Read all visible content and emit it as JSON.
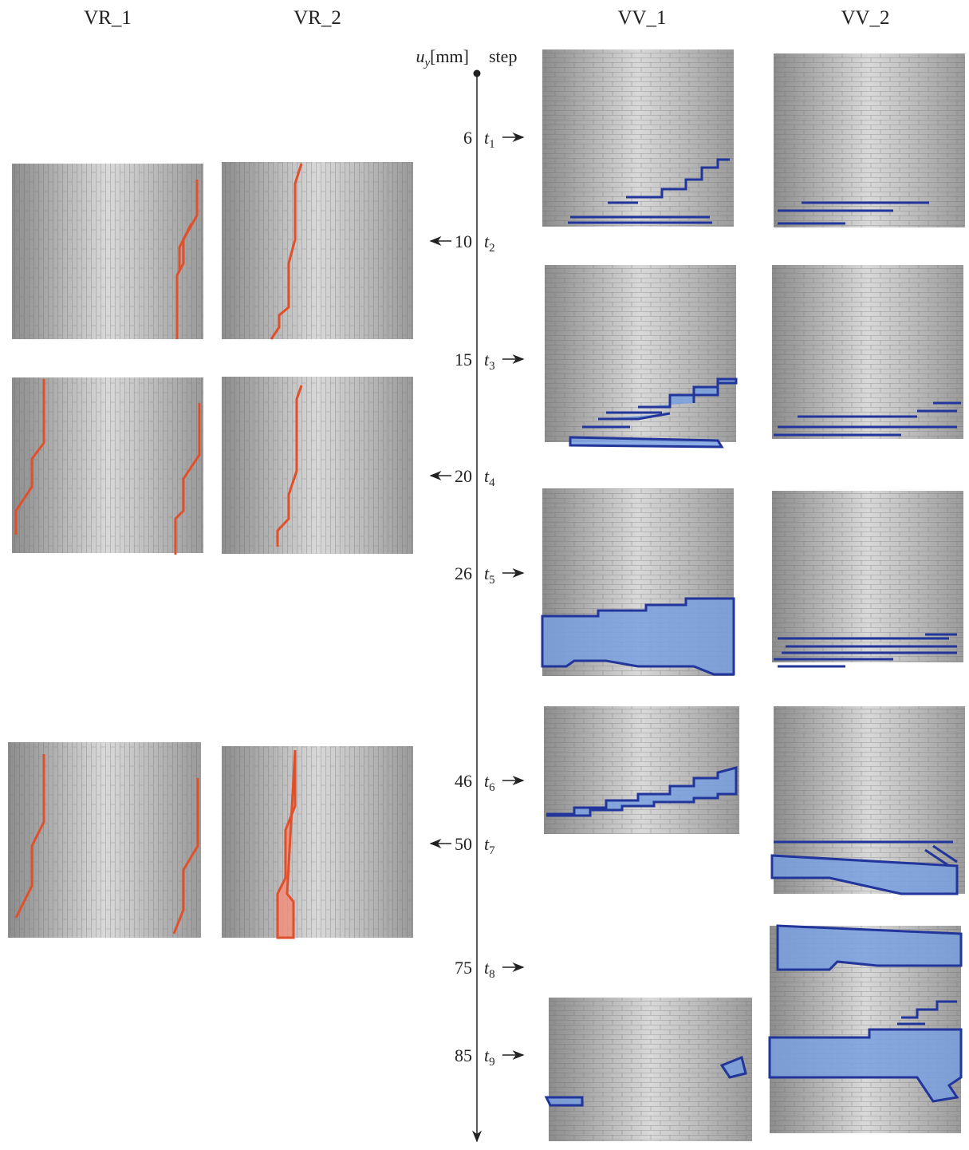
{
  "columns": [
    "VR_1",
    "VR_2",
    "VV_1",
    "VV_2"
  ],
  "axis": {
    "displacement_label": {
      "symbol": "u",
      "subscript": "y",
      "unit": "[mm]"
    },
    "step_label": "step"
  },
  "steps": [
    {
      "displacement": 6,
      "step": {
        "symbol": "t",
        "subscript": "1"
      }
    },
    {
      "displacement": 10,
      "step": {
        "symbol": "t",
        "subscript": "2"
      }
    },
    {
      "displacement": 15,
      "step": {
        "symbol": "t",
        "subscript": "3"
      }
    },
    {
      "displacement": 20,
      "step": {
        "symbol": "t",
        "subscript": "4"
      }
    },
    {
      "displacement": 26,
      "step": {
        "symbol": "t",
        "subscript": "5"
      }
    },
    {
      "displacement": 46,
      "step": {
        "symbol": "t",
        "subscript": "6"
      }
    },
    {
      "displacement": 50,
      "step": {
        "symbol": "t",
        "subscript": "7"
      }
    },
    {
      "displacement": 75,
      "step": {
        "symbol": "t",
        "subscript": "8"
      }
    },
    {
      "displacement": 85,
      "step": {
        "symbol": "t",
        "subscript": "9"
      }
    }
  ]
}
